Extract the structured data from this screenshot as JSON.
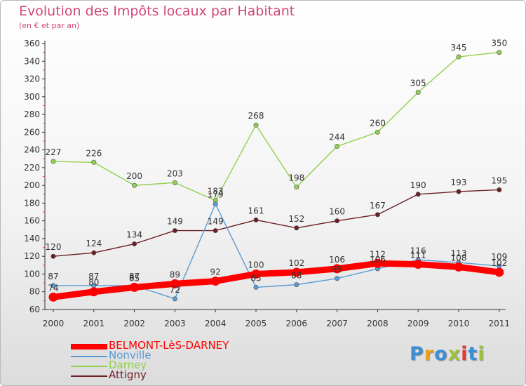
{
  "title": "Evolution des Impôts locaux par Habitant",
  "subtitle": "(en € et par an)",
  "brand": {
    "text": "Proxiti",
    "colors": [
      "#3a8fd6",
      "#e8a21a",
      "#3a8fd6",
      "#9bc23b",
      "#e23a3a",
      "#3a8fd6",
      "#9bc23b"
    ]
  },
  "chart_data": {
    "type": "line",
    "x": [
      "2000",
      "2001",
      "2002",
      "2003",
      "2004",
      "2005",
      "2006",
      "2007",
      "2008",
      "2009",
      "2010",
      "2011"
    ],
    "ylim": [
      60,
      360
    ],
    "yticks": [
      60,
      80,
      100,
      120,
      140,
      160,
      180,
      200,
      220,
      240,
      260,
      280,
      300,
      320,
      340,
      360
    ],
    "grid": false,
    "legend_position": "bottom",
    "series": [
      {
        "name": "BELMONT-LèS-DARNEY",
        "color": "#ff0000",
        "values": [
          74,
          80,
          85,
          89,
          92,
          100,
          102,
          106,
          112,
          111,
          108,
          102
        ],
        "labels": [
          "74",
          "80",
          "85",
          "89",
          "92",
          "100",
          "102",
          "106",
          "112",
          "111",
          "108",
          "102"
        ]
      },
      {
        "name": "Nonville",
        "color": "#5a9bd5",
        "values": [
          87,
          87,
          87,
          72,
          179,
          85,
          88,
          95,
          106,
          116,
          113,
          109
        ],
        "labels": [
          "87",
          "87",
          "87",
          "72",
          "179",
          "85",
          "88",
          "95",
          "106",
          "116",
          "113",
          "109"
        ]
      },
      {
        "name": "Darney",
        "color": "#92d050",
        "values": [
          227,
          226,
          200,
          203,
          183,
          268,
          198,
          244,
          260,
          305,
          345,
          350
        ],
        "labels": [
          "227",
          "226",
          "200",
          "203",
          "183",
          "268",
          "198",
          "244",
          "260",
          "305",
          "345",
          "350"
        ]
      },
      {
        "name": "Attigny",
        "color": "#6b1f24",
        "values": [
          120,
          124,
          134,
          149,
          149,
          161,
          152,
          160,
          167,
          190,
          193,
          195
        ],
        "labels": [
          "120",
          "124",
          "134",
          "149",
          "149",
          "161",
          "152",
          "160",
          "167",
          "190",
          "193",
          "195"
        ]
      }
    ]
  }
}
